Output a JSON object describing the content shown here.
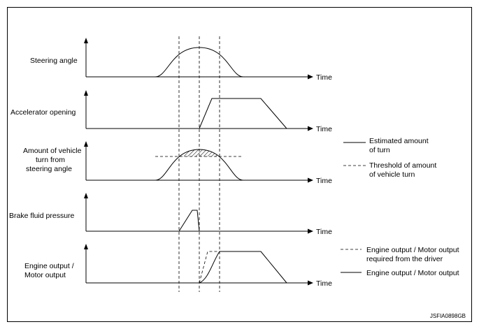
{
  "panels": [
    {
      "label": [
        "Steering angle"
      ],
      "time_label": "Time"
    },
    {
      "label": [
        "Accelerator opening"
      ],
      "time_label": "Time"
    },
    {
      "label": [
        "Amount of vehicle",
        "turn from",
        "steering angle"
      ],
      "time_label": "Time"
    },
    {
      "label": [
        "Brake fluid pressure"
      ],
      "time_label": "Time"
    },
    {
      "label": [
        "Engine output /",
        "Motor output"
      ],
      "time_label": "Time"
    }
  ],
  "legend_turn": {
    "solid": [
      "Estimated amount",
      "of turn"
    ],
    "dashed": [
      "Threshold of amount",
      "of vehicle turn"
    ]
  },
  "legend_output": {
    "dashed": [
      "Engine output / Motor output",
      "required from the driver"
    ],
    "solid": [
      "Engine output / Motor output"
    ]
  },
  "figure_code": "JSFIA0898GB",
  "colors": {
    "line": "#000000",
    "background": "#ffffff"
  }
}
